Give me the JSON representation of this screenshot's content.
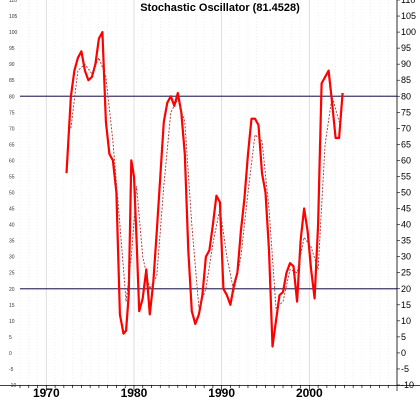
{
  "chart_data": {
    "type": "line",
    "title": "Stochastic Oscillator (81.4528)",
    "xlabel": "",
    "ylabel": "",
    "xlim": [
      1967.0,
      2010.0
    ],
    "ylim": [
      -10,
      110
    ],
    "yticks": [
      -10,
      -5,
      0,
      5,
      10,
      15,
      20,
      25,
      30,
      35,
      40,
      45,
      50,
      55,
      60,
      65,
      70,
      75,
      80,
      85,
      90,
      95,
      100,
      105,
      110
    ],
    "x_year_labels": [
      "1970",
      "1980",
      "1990",
      "2000"
    ],
    "x_year_values": [
      1970,
      1980,
      1990,
      2000
    ],
    "grid": "vertical-only-faint",
    "reference_lines": [
      80,
      20
    ],
    "colors": {
      "main_line": "#ff0000",
      "signal_line": "#b03030",
      "reference_line": "#3a3a6a",
      "grid": "#d8d8d8"
    },
    "series": [
      {
        "role": "main",
        "x": [
          1972.3,
          1972.8,
          1973.2,
          1973.6,
          1974.0,
          1974.4,
          1974.8,
          1975.2,
          1975.6,
          1976.0,
          1976.4,
          1976.8,
          1977.2,
          1977.6,
          1978.0,
          1978.4,
          1978.8,
          1979.1,
          1979.4,
          1979.7,
          1980.0,
          1980.3,
          1980.6,
          1981.0,
          1981.4,
          1981.8,
          1982.2,
          1982.6,
          1983.0,
          1983.4,
          1983.8,
          1984.2,
          1984.6,
          1985.0,
          1985.4,
          1985.8,
          1986.2,
          1986.6,
          1987.0,
          1987.4,
          1987.8,
          1988.2,
          1988.6,
          1989.0,
          1989.4,
          1989.8,
          1990.2,
          1990.6,
          1991.0,
          1991.4,
          1991.8,
          1992.2,
          1992.6,
          1993.0,
          1993.4,
          1993.8,
          1994.2,
          1994.6,
          1995.0,
          1995.4,
          1995.8,
          1996.2,
          1996.6,
          1997.0,
          1997.4,
          1997.8,
          1998.2,
          1998.6,
          1999.0,
          1999.4,
          1999.8,
          2000.2,
          2000.6,
          2001.0,
          2001.4,
          2001.8,
          2002.2,
          2002.6,
          2003.0,
          2003.4,
          2003.8
        ],
        "y": [
          56,
          80,
          88,
          92,
          94,
          88,
          85,
          86,
          90,
          98,
          100,
          72,
          62,
          60,
          50,
          12,
          6,
          7,
          18,
          60,
          55,
          35,
          13,
          17,
          26,
          12,
          22,
          38,
          55,
          72,
          78,
          80,
          77,
          81,
          75,
          62,
          32,
          13,
          9,
          12,
          18,
          30,
          32,
          40,
          49,
          47,
          20,
          18,
          15,
          21,
          25,
          38,
          48,
          62,
          73,
          73,
          71,
          56,
          50,
          32,
          2,
          10,
          18,
          19,
          25,
          28,
          27,
          16,
          35,
          45,
          38,
          26,
          17,
          40,
          84,
          86,
          88,
          78,
          67,
          67,
          81
        ]
      },
      {
        "role": "signal",
        "x": [
          1972.8,
          1973.6,
          1974.4,
          1975.2,
          1976.0,
          1976.8,
          1977.6,
          1978.4,
          1979.1,
          1979.7,
          1980.3,
          1981.0,
          1981.8,
          1982.6,
          1983.4,
          1984.2,
          1985.0,
          1985.8,
          1986.6,
          1987.4,
          1988.2,
          1989.0,
          1989.8,
          1990.6,
          1991.4,
          1992.2,
          1993.0,
          1993.8,
          1994.6,
          1995.4,
          1996.2,
          1997.0,
          1997.8,
          1998.6,
          1999.4,
          2000.2,
          2001.0,
          2001.8,
          2002.6,
          2003.4
        ],
        "y": [
          70,
          88,
          90,
          87,
          92,
          86,
          66,
          40,
          16,
          30,
          52,
          30,
          20,
          24,
          52,
          75,
          79,
          72,
          40,
          14,
          20,
          34,
          45,
          30,
          19,
          30,
          50,
          68,
          66,
          45,
          14,
          16,
          26,
          25,
          36,
          33,
          26,
          65,
          80,
          72
        ]
      }
    ]
  }
}
